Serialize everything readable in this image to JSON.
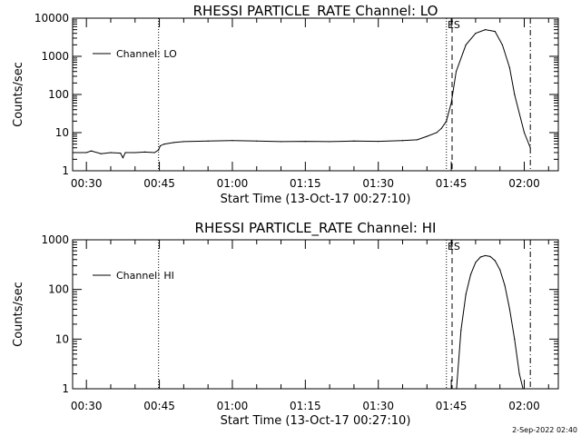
{
  "footer": "2-Sep-2022 02:40",
  "chart_data": [
    {
      "type": "line",
      "title": "RHESSI PARTICLE_RATE Channel: LO",
      "xlabel": "Start Time (13-Oct-17 00:27:10)",
      "ylabel": "Counts/sec",
      "yscale": "log",
      "ylim": [
        1,
        10000
      ],
      "xlim": [
        "00:27:10",
        "02:07:00"
      ],
      "xticks": [
        "00:30",
        "00:45",
        "01:00",
        "01:15",
        "01:30",
        "01:45",
        "02:00"
      ],
      "yticks": [
        "1",
        "10",
        "100",
        "1000",
        "10000"
      ],
      "legend": {
        "label": "Channel: LO",
        "position": "top-left"
      },
      "annotation": "ES",
      "markers": [
        {
          "style": "dotted",
          "x": "00:44:50"
        },
        {
          "style": "dotted",
          "x": "01:44:00"
        },
        {
          "style": "dashed",
          "x": "01:45:10"
        },
        {
          "style": "dash-dot",
          "x": "02:01:15"
        }
      ],
      "series": [
        {
          "name": "Channel: LO",
          "x": [
            "00:27:10",
            "00:30:00",
            "00:31:00",
            "00:33:00",
            "00:35:00",
            "00:37:00",
            "00:37:30",
            "00:38:00",
            "00:40:00",
            "00:42:00",
            "00:44:00",
            "00:44:50",
            "00:45:10",
            "00:46:00",
            "00:48:00",
            "00:50:00",
            "00:55:00",
            "01:00:00",
            "01:05:00",
            "01:10:00",
            "01:15:00",
            "01:20:00",
            "01:25:00",
            "01:30:00",
            "01:35:00",
            "01:38:00",
            "01:40:00",
            "01:42:00",
            "01:43:00",
            "01:44:00",
            "01:45:00",
            "01:46:00",
            "01:48:00",
            "01:50:00",
            "01:52:00",
            "01:54:00",
            "01:55:30",
            "01:57:00",
            "01:58:00",
            "02:00:00",
            "02:01:15"
          ],
          "y": [
            3,
            3,
            3.3,
            2.8,
            3,
            2.9,
            2.2,
            3,
            3,
            3.1,
            3,
            3.5,
            4.5,
            5,
            5.5,
            5.8,
            6,
            6.2,
            6,
            5.8,
            5.9,
            5.8,
            6,
            5.9,
            6.2,
            6.5,
            8,
            10,
            13,
            20,
            60,
            400,
            2000,
            4000,
            5000,
            4500,
            2000,
            500,
            100,
            10,
            4
          ]
        }
      ]
    },
    {
      "type": "line",
      "title": "RHESSI PARTICLE_RATE Channel: HI",
      "xlabel": "Start Time (13-Oct-17 00:27:10)",
      "ylabel": "Counts/sec",
      "yscale": "log",
      "ylim": [
        1,
        1000
      ],
      "xlim": [
        "00:27:10",
        "02:07:00"
      ],
      "xticks": [
        "00:30",
        "00:45",
        "01:00",
        "01:15",
        "01:30",
        "01:45",
        "02:00"
      ],
      "yticks": [
        "1",
        "10",
        "100",
        "1000"
      ],
      "legend": {
        "label": "Channel: HI",
        "position": "top-left"
      },
      "annotation": "ES",
      "markers": [
        {
          "style": "dotted",
          "x": "00:44:50"
        },
        {
          "style": "dotted",
          "x": "01:44:00"
        },
        {
          "style": "dashed",
          "x": "01:45:10"
        },
        {
          "style": "dash-dot",
          "x": "02:01:15"
        }
      ],
      "series": [
        {
          "name": "Channel: HI",
          "x": [
            "01:46:05",
            "01:47:00",
            "01:48:00",
            "01:49:00",
            "01:50:00",
            "01:51:00",
            "01:52:00",
            "01:53:00",
            "01:54:00",
            "01:55:00",
            "01:56:00",
            "01:57:00",
            "01:58:00",
            "01:59:00",
            "01:59:45"
          ],
          "y": [
            1,
            15,
            80,
            200,
            350,
            450,
            480,
            460,
            380,
            250,
            120,
            40,
            10,
            2,
            1
          ]
        }
      ]
    }
  ]
}
